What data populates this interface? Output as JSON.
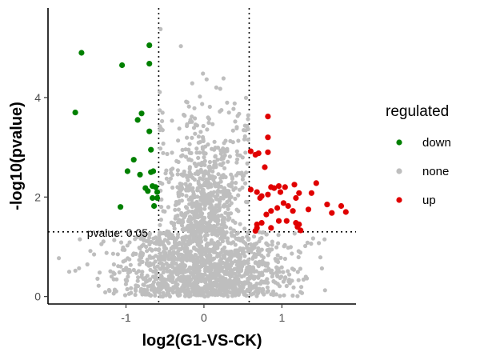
{
  "chart_data": {
    "type": "scatter",
    "xlabel": "log2(G1-VS-CK)",
    "ylabel": "-log10(pvalue)",
    "xlim": [
      -2.0,
      1.95
    ],
    "ylim": [
      -0.15,
      5.8
    ],
    "x_ticks": [
      -1,
      0,
      1
    ],
    "x_tick_labels": [
      "-1",
      "0",
      "1"
    ],
    "y_ticks": [
      0,
      2,
      4
    ],
    "y_tick_labels": [
      "0",
      "2",
      "4"
    ],
    "grid": false,
    "legend": {
      "title": "regulated",
      "placement": "right",
      "entries": [
        {
          "label": "down",
          "color": "#008000"
        },
        {
          "label": "none",
          "color": "#bebebe"
        },
        {
          "label": "up",
          "color": "#e00000"
        }
      ]
    },
    "reference_lines": {
      "vertical_x": [
        -0.58,
        0.58
      ],
      "horizontal_y": 1.3,
      "style": "dotted"
    },
    "annotations": [
      {
        "text": "pvalue: 0.05",
        "x": -1.5,
        "y": 1.2
      }
    ],
    "series": [
      {
        "name": "down",
        "color": "#008000",
        "points": [
          [
            -1.57,
            4.9
          ],
          [
            -1.65,
            3.7
          ],
          [
            -1.05,
            4.65
          ],
          [
            -0.98,
            2.52
          ],
          [
            -0.9,
            2.75
          ],
          [
            -0.82,
            2.45
          ],
          [
            -0.8,
            3.68
          ],
          [
            -0.85,
            3.55
          ],
          [
            -0.7,
            5.05
          ],
          [
            -0.7,
            4.68
          ],
          [
            -0.7,
            3.32
          ],
          [
            -0.68,
            2.95
          ],
          [
            -0.68,
            2.5
          ],
          [
            -0.65,
            2.52
          ],
          [
            -0.75,
            2.18
          ],
          [
            -0.72,
            2.12
          ],
          [
            -0.66,
            1.98
          ],
          [
            -0.66,
            2.22
          ],
          [
            -0.62,
            2.2
          ],
          [
            -0.64,
            1.82
          ],
          [
            -1.07,
            1.8
          ],
          [
            -0.6,
            2.1
          ],
          [
            -0.6,
            1.98
          ]
        ]
      },
      {
        "name": "up",
        "color": "#e00000",
        "points": [
          [
            0.82,
            3.62
          ],
          [
            0.82,
            3.2
          ],
          [
            0.6,
            2.92
          ],
          [
            0.66,
            2.85
          ],
          [
            0.7,
            2.88
          ],
          [
            0.82,
            2.9
          ],
          [
            0.78,
            2.6
          ],
          [
            0.6,
            2.15
          ],
          [
            0.68,
            2.1
          ],
          [
            0.72,
            1.98
          ],
          [
            0.74,
            2.02
          ],
          [
            0.82,
            2.05
          ],
          [
            0.86,
            2.2
          ],
          [
            0.9,
            2.18
          ],
          [
            0.96,
            2.22
          ],
          [
            0.98,
            2.1
          ],
          [
            1.04,
            2.2
          ],
          [
            1.16,
            2.25
          ],
          [
            1.22,
            2.08
          ],
          [
            1.18,
            1.98
          ],
          [
            1.44,
            2.28
          ],
          [
            1.38,
            2.08
          ],
          [
            1.02,
            1.88
          ],
          [
            1.08,
            1.82
          ],
          [
            0.94,
            1.78
          ],
          [
            0.86,
            1.72
          ],
          [
            0.8,
            1.65
          ],
          [
            1.14,
            1.72
          ],
          [
            1.34,
            1.75
          ],
          [
            1.58,
            1.85
          ],
          [
            1.64,
            1.68
          ],
          [
            1.76,
            1.82
          ],
          [
            1.82,
            1.7
          ],
          [
            1.18,
            1.48
          ],
          [
            1.22,
            1.45
          ],
          [
            1.2,
            1.4
          ],
          [
            1.24,
            1.33
          ],
          [
            1.06,
            1.52
          ],
          [
            0.96,
            1.52
          ],
          [
            0.74,
            1.48
          ],
          [
            0.68,
            1.45
          ],
          [
            0.68,
            1.38
          ],
          [
            0.66,
            1.32
          ],
          [
            0.86,
            1.38
          ]
        ]
      }
    ],
    "none_series_spec": {
      "name": "none",
      "color": "#bebebe",
      "approx_count": 2000,
      "note": "dense non-significant cloud"
    }
  }
}
